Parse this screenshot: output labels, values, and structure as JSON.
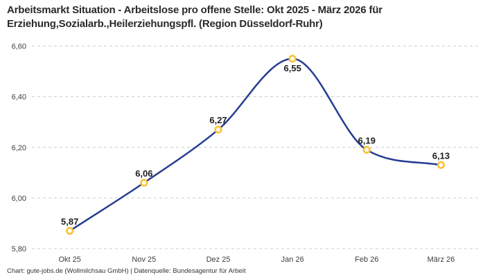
{
  "footer": {
    "text": "Chart: gute-jobs.de (Wollmilchsau GmbH) | Datenquelle: Bundesagentur für Arbeit"
  },
  "chart_data": {
    "type": "line",
    "title": "Arbeitsmarkt Situation - Arbeitslose pro offene Stelle: Okt 2025 - März 2026 für Erziehung,Sozialarb.,Heilerziehungspfl. (Region Düsseldorf-Ruhr)",
    "series_name": "Arbeitslose pro offene Stelle",
    "categories": [
      "Okt 25",
      "Nov 25",
      "Dez 25",
      "Jan 26",
      "Feb 26",
      "März 26"
    ],
    "values": [
      5.87,
      6.06,
      6.27,
      6.55,
      6.19,
      6.13
    ],
    "value_labels": [
      "5,87",
      "6,06",
      "6,27",
      "6,55",
      "6,19",
      "6,13"
    ],
    "label_placement": [
      "above",
      "above",
      "above",
      "below",
      "above",
      "above"
    ],
    "y_ticks": [
      "5,80",
      "6,00",
      "6,20",
      "6,40",
      "6,60"
    ],
    "ylim": [
      5.8,
      6.6
    ],
    "xlabel": "",
    "ylabel": "",
    "grid": "horizontal-dashed",
    "legend": "none",
    "curve": "smooth-monotone",
    "colors": {
      "line": "#253C92",
      "marker_ring": "#F9C233",
      "marker_fill": "#ffffff",
      "grid": "#cccccc",
      "tick_text": "#3d3d3d",
      "point_label_text": "#1d1d1d"
    }
  }
}
